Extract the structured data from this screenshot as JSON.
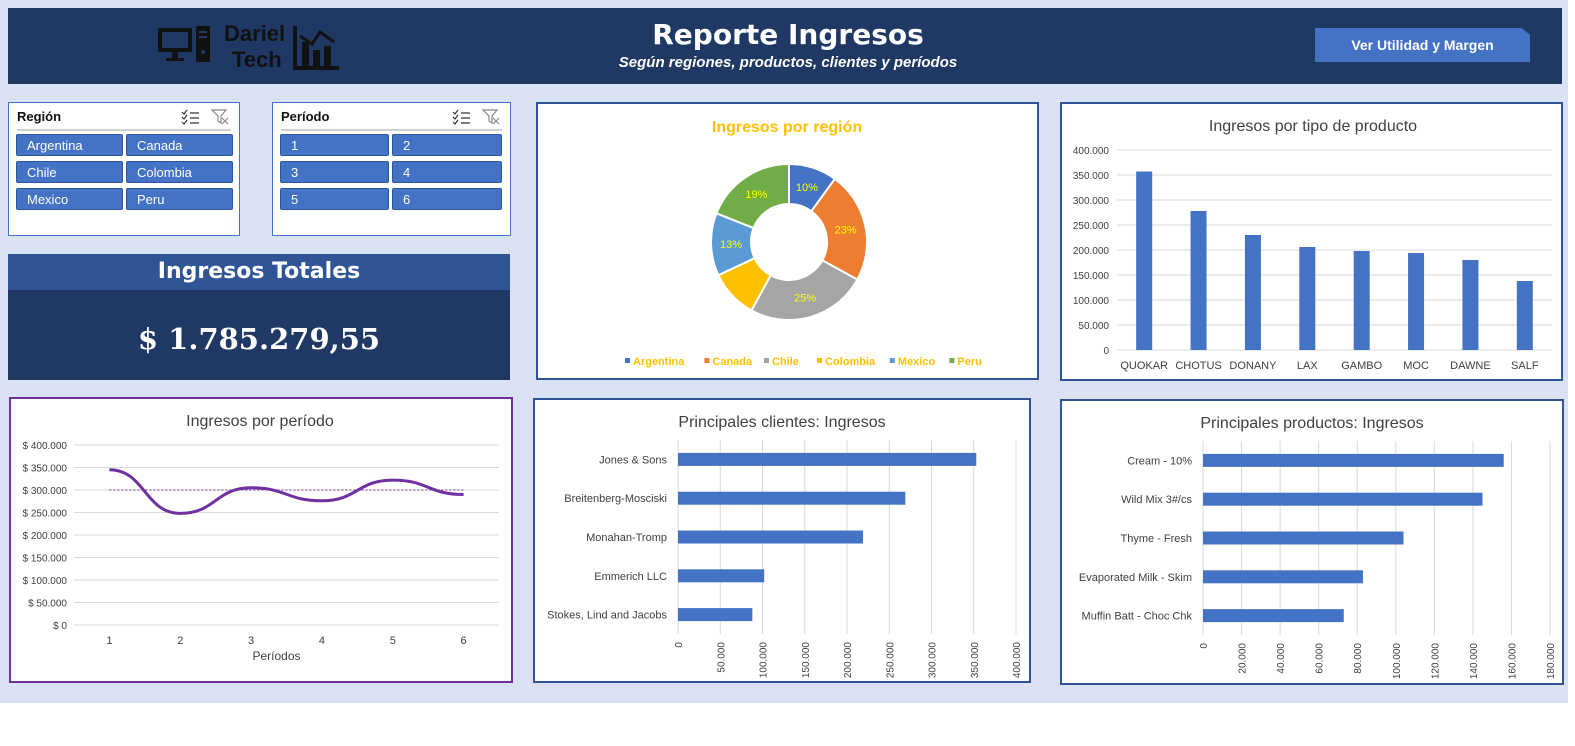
{
  "header": {
    "logo_line1": "Dariel",
    "logo_line2": "Tech",
    "title": "Reporte Ingresos",
    "subtitle": "Según regiones, productos, clientes y períodos",
    "button_label": "Ver Utilidad y Margen"
  },
  "slicers": {
    "region": {
      "title": "Región",
      "items": [
        "Argentina",
        "Canada",
        "Chile",
        "Colombia",
        "Mexico",
        "Peru"
      ]
    },
    "periodo": {
      "title": "Período",
      "items": [
        "1",
        "2",
        "3",
        "4",
        "5",
        "6"
      ]
    }
  },
  "totals": {
    "title": "Ingresos Totales",
    "value": "$ 1.785.279,55"
  },
  "colors": {
    "navy": "#1f3864",
    "blue": "#4472c4",
    "gold": "#ffc000",
    "purple": "#7030a0"
  },
  "chart_data": [
    {
      "id": "region",
      "type": "pie",
      "title": "Ingresos por región",
      "categories": [
        "Argentina",
        "Canada",
        "Chile",
        "Colombia",
        "Mexico",
        "Peru"
      ],
      "values": [
        10,
        23,
        25,
        10,
        13,
        19
      ],
      "labels": [
        "10%",
        "23%",
        "25%",
        "",
        "13%",
        "19%"
      ],
      "colors": [
        "#4472c4",
        "#ed7d31",
        "#a5a5a5",
        "#ffc000",
        "#5b9bd5",
        "#70ad47"
      ],
      "legend": "bottom"
    },
    {
      "id": "tipo",
      "type": "bar",
      "title": "Ingresos por tipo de producto",
      "categories": [
        "QUOKAR",
        "CHOTUS",
        "DONANY",
        "LAX",
        "GAMBO",
        "MOC",
        "DAWNE",
        "SALF"
      ],
      "values": [
        357000,
        278000,
        230000,
        206000,
        198000,
        194000,
        180000,
        138000
      ],
      "ylim": [
        0,
        400000
      ],
      "yticks": [
        "0",
        "50.000",
        "100.000",
        "150.000",
        "200.000",
        "250.000",
        "300.000",
        "350.000",
        "400.000"
      ],
      "grid": true
    },
    {
      "id": "periodo",
      "type": "line",
      "title": "Ingresos por período",
      "xlabel": "Períodos",
      "x": [
        "1",
        "2",
        "3",
        "4",
        "5",
        "6"
      ],
      "values": [
        345000,
        248000,
        305000,
        276000,
        322000,
        290000
      ],
      "trend": [
        300000,
        300000,
        300000,
        300000,
        300000,
        300000
      ],
      "ylim": [
        0,
        400000
      ],
      "yticks": [
        "$ 0",
        "$ 50.000",
        "$ 100.000",
        "$ 150.000",
        "$ 200.000",
        "$ 250.000",
        "$ 300.000",
        "$ 350.000",
        "$ 400.000"
      ],
      "grid": true
    },
    {
      "id": "clientes",
      "type": "bar",
      "orientation": "horizontal",
      "title": "Principales clientes: Ingresos",
      "categories": [
        "Jones & Sons",
        "Breitenberg-Mosciski",
        "Monahan-Tromp",
        "Emmerich LLC",
        "Stokes, Lind and Jacobs"
      ],
      "values": [
        353000,
        269000,
        219000,
        102000,
        88000
      ],
      "xlim": [
        0,
        400000
      ],
      "xticks": [
        "0",
        "50.000",
        "100.000",
        "150.000",
        "200.000",
        "250.000",
        "300.000",
        "350.000",
        "400.000"
      ],
      "grid": true
    },
    {
      "id": "productos",
      "type": "bar",
      "orientation": "horizontal",
      "title": "Principales productos: Ingresos",
      "categories": [
        "Cream - 10%",
        "Wild Mix 3#/cs",
        "Thyme - Fresh",
        "Evaporated Milk - Skim",
        "Muffin Batt - Choc Chk"
      ],
      "values": [
        156000,
        145000,
        104000,
        83000,
        73000
      ],
      "xlim": [
        0,
        180000
      ],
      "xticks": [
        "0",
        "20.000",
        "40.000",
        "60.000",
        "80.000",
        "100.000",
        "120.000",
        "140.000",
        "160.000",
        "180.000"
      ],
      "grid": true
    }
  ]
}
